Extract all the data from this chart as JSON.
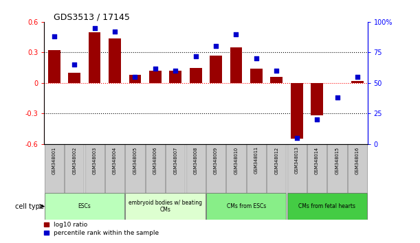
{
  "title": "GDS3513 / 17145",
  "samples": [
    "GSM348001",
    "GSM348002",
    "GSM348003",
    "GSM348004",
    "GSM348005",
    "GSM348006",
    "GSM348007",
    "GSM348008",
    "GSM348009",
    "GSM348010",
    "GSM348011",
    "GSM348012",
    "GSM348013",
    "GSM348014",
    "GSM348015",
    "GSM348016"
  ],
  "log10_ratio": [
    0.32,
    0.1,
    0.5,
    0.44,
    0.08,
    0.12,
    0.12,
    0.15,
    0.27,
    0.35,
    0.14,
    0.06,
    -0.55,
    -0.32,
    0.0,
    0.02
  ],
  "percentile_rank": [
    88,
    65,
    95,
    92,
    55,
    62,
    60,
    72,
    80,
    90,
    70,
    60,
    5,
    20,
    38,
    55
  ],
  "bar_color": "#990000",
  "dot_color": "#0000cc",
  "ylim_left": [
    -0.6,
    0.6
  ],
  "ylim_right": [
    0,
    100
  ],
  "yticks_left": [
    -0.6,
    -0.3,
    0.0,
    0.3,
    0.6
  ],
  "yticks_right": [
    0,
    25,
    50,
    75,
    100
  ],
  "yticklabels_right": [
    "0",
    "25",
    "50",
    "75",
    "100%"
  ],
  "hlines_black": [
    0.3,
    -0.3
  ],
  "hline_red": 0.0,
  "cell_groups": [
    {
      "label": "ESCs",
      "start": 0,
      "end": 3,
      "color": "#bbffbb"
    },
    {
      "label": "embryoid bodies w/ beating\nCMs",
      "start": 4,
      "end": 7,
      "color": "#ddffd0"
    },
    {
      "label": "CMs from ESCs",
      "start": 8,
      "end": 11,
      "color": "#88ee88"
    },
    {
      "label": "CMs from fetal hearts",
      "start": 12,
      "end": 15,
      "color": "#44cc44"
    }
  ],
  "cell_type_label": "cell type",
  "legend_items": [
    {
      "color": "#990000",
      "label": "log10 ratio"
    },
    {
      "color": "#0000cc",
      "label": "percentile rank within the sample"
    }
  ],
  "background_color": "#ffffff",
  "tick_area_color": "#cccccc"
}
